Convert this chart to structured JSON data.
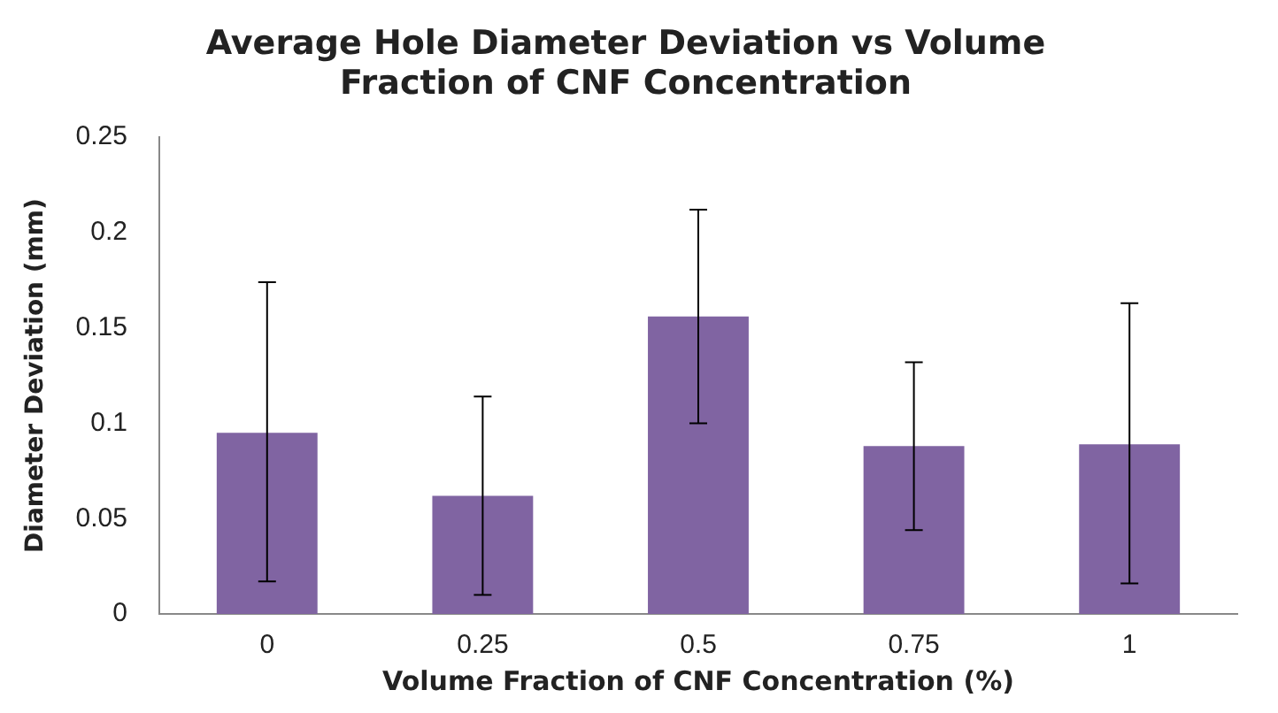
{
  "chart_data": {
    "type": "bar",
    "title": "Average Hole Diameter Deviation vs Volume Fraction of CNF Concentration",
    "xlabel": "Volume Fraction of CNF Concentration (%)",
    "ylabel": "Diameter Deviation (mm)",
    "categories": [
      "0",
      "0.25",
      "0.5",
      "0.75",
      "1"
    ],
    "values": [
      0.095,
      0.062,
      0.156,
      0.088,
      0.089
    ],
    "color": "#8064a2",
    "errors": [
      [
        0.017,
        0.174
      ],
      [
        0.01,
        0.114
      ],
      [
        0.1,
        0.212
      ],
      [
        0.044,
        0.132
      ],
      [
        0.016,
        0.163
      ]
    ],
    "ylim": [
      0,
      0.25
    ],
    "yticks": [
      0,
      0.05,
      0.1,
      0.15,
      0.2,
      0.25
    ],
    "grid": false,
    "legend": false
  }
}
